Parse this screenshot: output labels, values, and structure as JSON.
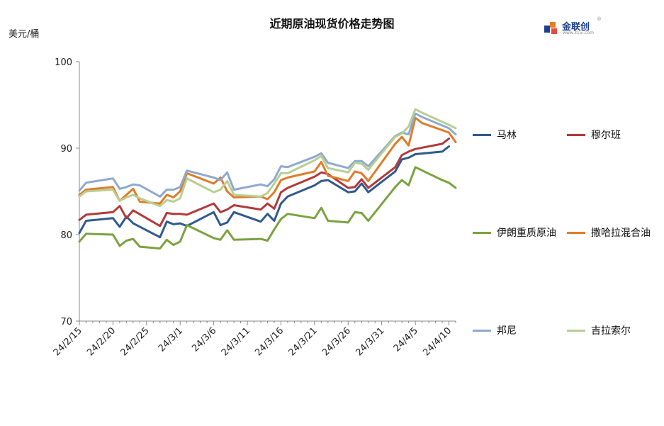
{
  "header": {
    "title": "近期原油现货价格走势图",
    "unit": "美元/桶",
    "logo_text": "金联创",
    "logo_sub": "www.315i.com"
  },
  "chart_data": {
    "type": "line",
    "title": "近期原油现货价格走势图",
    "ylabel": "美元/桶",
    "xlabel": "",
    "ylim": [
      70,
      100
    ],
    "yticks": [
      70,
      80,
      90,
      100
    ],
    "x_tick_labels": [
      "24/2/15",
      "24/2/20",
      "24/2/25",
      "24/3/1",
      "24/3/6",
      "24/3/11",
      "24/3/16",
      "24/3/21",
      "24/3/26",
      "24/3/31",
      "24/4/5",
      "24/4/10"
    ],
    "x_tick_index": [
      0,
      5,
      10,
      15,
      20,
      25,
      30,
      35,
      40,
      45,
      50,
      55
    ],
    "x_last_index": 56,
    "legend_position": "right",
    "grid": false,
    "series": [
      {
        "name": "马林",
        "color": "#2f5a8e",
        "x": [
          0,
          1,
          5,
          6,
          7,
          8,
          12,
          13,
          14,
          15,
          16,
          20,
          21,
          22,
          23,
          27,
          28,
          29,
          30,
          31,
          35,
          36,
          37,
          40,
          41,
          42,
          43,
          47,
          48,
          49,
          50,
          54,
          55
        ],
        "values": [
          80.2,
          81.6,
          81.9,
          80.9,
          82.1,
          81.3,
          79.7,
          81.5,
          81.2,
          81.3,
          81.0,
          82.6,
          81.1,
          81.4,
          82.6,
          81.5,
          82.4,
          81.6,
          83.6,
          84.4,
          85.7,
          86.2,
          86.3,
          84.9,
          85.0,
          85.9,
          84.9,
          87.3,
          88.7,
          88.9,
          89.3,
          89.6,
          90.2
        ]
      },
      {
        "name": "穆尔班",
        "color": "#b23a3a",
        "x": [
          0,
          1,
          5,
          6,
          7,
          8,
          12,
          13,
          14,
          15,
          16,
          20,
          21,
          22,
          23,
          27,
          28,
          29,
          30,
          31,
          35,
          36,
          37,
          40,
          41,
          42,
          43,
          47,
          48,
          49,
          50,
          54,
          55
        ],
        "values": [
          81.7,
          82.3,
          82.6,
          83.3,
          81.9,
          82.8,
          81.0,
          82.5,
          82.4,
          82.4,
          82.3,
          83.6,
          82.6,
          82.9,
          83.4,
          82.9,
          83.6,
          83.0,
          84.9,
          85.4,
          86.7,
          87.2,
          87.0,
          85.4,
          85.5,
          86.4,
          85.4,
          87.8,
          89.2,
          89.6,
          89.9,
          90.5,
          91.1
        ]
      },
      {
        "name": "伊朗重质原油",
        "color": "#7ba23f",
        "x": [
          0,
          1,
          5,
          6,
          7,
          8,
          9,
          12,
          13,
          14,
          15,
          16,
          20,
          21,
          22,
          23,
          27,
          28,
          29,
          30,
          31,
          35,
          36,
          37,
          40,
          41,
          42,
          43,
          47,
          48,
          49,
          50,
          54,
          55,
          56
        ],
        "values": [
          79.2,
          80.1,
          80.0,
          78.7,
          79.3,
          79.5,
          78.6,
          78.4,
          79.4,
          78.8,
          79.2,
          81.1,
          79.6,
          79.4,
          80.5,
          79.4,
          79.5,
          79.3,
          80.6,
          81.8,
          82.4,
          81.9,
          83.1,
          81.6,
          81.4,
          82.6,
          82.5,
          81.6,
          85.5,
          86.3,
          85.7,
          87.8,
          86.3,
          86.0,
          85.4
        ]
      },
      {
        "name": "撒哈拉混合油",
        "color": "#e07b2a",
        "x": [
          0,
          1,
          5,
          6,
          7,
          8,
          9,
          12,
          13,
          14,
          15,
          16,
          20,
          21,
          22,
          23,
          27,
          28,
          29,
          30,
          31,
          35,
          36,
          37,
          40,
          41,
          42,
          43,
          47,
          48,
          49,
          50,
          51,
          55,
          56
        ],
        "values": [
          84.6,
          85.2,
          85.5,
          83.9,
          84.6,
          85.3,
          83.8,
          83.6,
          84.6,
          84.3,
          85.0,
          87.1,
          85.9,
          86.6,
          85.0,
          84.3,
          84.4,
          84.1,
          84.9,
          86.3,
          86.6,
          87.3,
          88.4,
          86.8,
          86.2,
          87.3,
          87.1,
          86.2,
          90.5,
          91.3,
          90.3,
          93.5,
          92.9,
          91.8,
          90.7
        ]
      },
      {
        "name": "邦尼",
        "color": "#8ea9cf",
        "x": [
          0,
          1,
          5,
          6,
          7,
          8,
          9,
          12,
          13,
          14,
          15,
          16,
          20,
          21,
          22,
          23,
          27,
          28,
          29,
          30,
          31,
          35,
          36,
          37,
          40,
          41,
          42,
          43,
          47,
          48,
          49,
          50,
          51,
          55,
          56
        ],
        "values": [
          85.1,
          86.0,
          86.5,
          85.3,
          85.5,
          85.8,
          85.7,
          84.4,
          85.2,
          85.2,
          85.5,
          87.4,
          86.6,
          86.3,
          87.2,
          85.2,
          85.8,
          85.6,
          86.4,
          87.9,
          87.8,
          89.0,
          89.4,
          88.3,
          87.7,
          88.5,
          88.5,
          87.9,
          91.4,
          91.8,
          91.6,
          94.0,
          93.6,
          92.3,
          91.6
        ]
      },
      {
        "name": "吉拉索尔",
        "color": "#b8cf90",
        "x": [
          0,
          1,
          5,
          6,
          7,
          8,
          9,
          12,
          13,
          14,
          15,
          16,
          20,
          21,
          22,
          23,
          27,
          28,
          29,
          30,
          31,
          35,
          36,
          37,
          40,
          41,
          42,
          43,
          47,
          48,
          49,
          50,
          51,
          55,
          56
        ],
        "values": [
          84.4,
          85.0,
          85.2,
          83.9,
          84.3,
          84.6,
          84.2,
          83.3,
          84.0,
          83.8,
          84.2,
          86.5,
          84.9,
          85.2,
          86.2,
          84.6,
          84.4,
          84.8,
          85.9,
          87.1,
          87.1,
          88.6,
          89.1,
          87.7,
          87.2,
          88.3,
          88.2,
          87.5,
          91.3,
          91.7,
          92.5,
          94.5,
          94.1,
          92.7,
          92.3
        ]
      }
    ]
  }
}
